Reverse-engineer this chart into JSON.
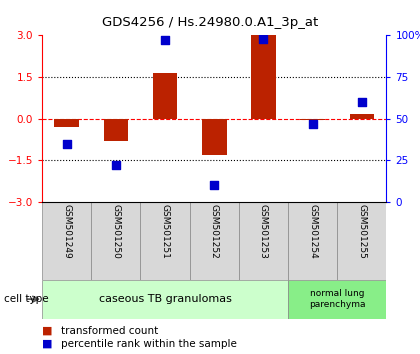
{
  "title": "GDS4256 / Hs.24980.0.A1_3p_at",
  "samples": [
    "GSM501249",
    "GSM501250",
    "GSM501251",
    "GSM501252",
    "GSM501253",
    "GSM501254",
    "GSM501255"
  ],
  "transformed_count": [
    -0.3,
    -0.8,
    1.65,
    -1.3,
    3.0,
    -0.05,
    0.15
  ],
  "percentile_rank": [
    35,
    22,
    97,
    10,
    98,
    47,
    60
  ],
  "bar_color": "#bb2200",
  "dot_color": "#0000cc",
  "ylim_left": [
    -3,
    3
  ],
  "ylim_right": [
    0,
    100
  ],
  "yticks_left": [
    -3,
    -1.5,
    0,
    1.5,
    3
  ],
  "yticks_right": [
    0,
    25,
    50,
    75,
    100
  ],
  "yticklabels_right": [
    "0",
    "25",
    "50",
    "75",
    "100%"
  ],
  "group1_label": "caseous TB granulomas",
  "group1_indices": [
    0,
    1,
    2,
    3,
    4
  ],
  "group2_label": "normal lung\nparenchyma",
  "group2_indices": [
    5,
    6
  ],
  "group1_color": "#ccffcc",
  "group2_color": "#88ee88",
  "sample_box_color": "#d8d8d8",
  "cell_type_label": "cell type",
  "legend_red": "transformed count",
  "legend_blue": "percentile rank within the sample",
  "bar_width": 0.5,
  "dot_size": 40
}
